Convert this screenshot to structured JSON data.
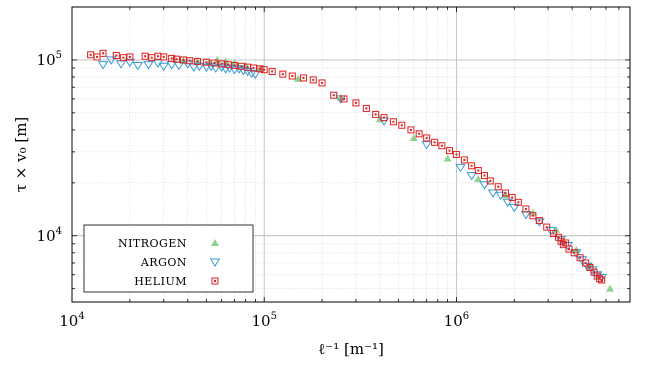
{
  "chart_data": {
    "type": "scatter",
    "xscale": "log",
    "yscale": "log",
    "xlim": [
      10000,
      8000000
    ],
    "ylim": [
      4200,
      200000
    ],
    "xlabel": "ℓ⁻¹ [m⁻¹]",
    "ylabel": "τ × v₀ [m]",
    "grid": true,
    "legend_position": "bottom-left",
    "x_ticks": [
      {
        "value": 10000,
        "base": "10",
        "exp": "4"
      },
      {
        "value": 100000,
        "base": "10",
        "exp": "5"
      },
      {
        "value": 1000000,
        "base": "10",
        "exp": "6"
      }
    ],
    "y_ticks": [
      {
        "value": 10000,
        "base": "10",
        "exp": "4"
      },
      {
        "value": 100000,
        "base": "10",
        "exp": "5"
      }
    ],
    "series": [
      {
        "name": "NITROGEN",
        "color": "#8fd18f",
        "marker": "triangle-up",
        "points": [
          [
            38000,
            99000
          ],
          [
            45000,
            98000
          ],
          [
            52000,
            97000
          ],
          [
            57000,
            100000
          ],
          [
            63000,
            98000
          ],
          [
            70000,
            96000
          ],
          [
            80000,
            93000
          ],
          [
            95000,
            89000
          ],
          [
            150000,
            78000
          ],
          [
            250000,
            61000
          ],
          [
            400000,
            46000
          ],
          [
            600000,
            36000
          ],
          [
            900000,
            27500
          ],
          [
            1300000,
            21000
          ],
          [
            1800000,
            17000
          ],
          [
            2500000,
            13500
          ],
          [
            3300000,
            10800
          ],
          [
            4200000,
            8300
          ],
          [
            5000000,
            6800
          ],
          [
            6300000,
            5000
          ]
        ]
      },
      {
        "name": "ARGON",
        "color": "#3a9bd5",
        "marker": "triangle-down",
        "points": [
          [
            14500,
            94000
          ],
          [
            16000,
            100000
          ],
          [
            18000,
            95000
          ],
          [
            20000,
            97000
          ],
          [
            22000,
            93000
          ],
          [
            25000,
            94000
          ],
          [
            28000,
            96000
          ],
          [
            30000,
            92000
          ],
          [
            33000,
            94000
          ],
          [
            36000,
            93000
          ],
          [
            40000,
            95000
          ],
          [
            43000,
            91000
          ],
          [
            46000,
            92000
          ],
          [
            50000,
            91000
          ],
          [
            53000,
            92000
          ],
          [
            56000,
            90000
          ],
          [
            60000,
            91000
          ],
          [
            63000,
            89000
          ],
          [
            66000,
            90000
          ],
          [
            70000,
            88000
          ],
          [
            74000,
            89000
          ],
          [
            78000,
            87000
          ],
          [
            82000,
            86000
          ],
          [
            86000,
            84000
          ],
          [
            90000,
            83000
          ],
          [
            250000,
            60000
          ],
          [
            420000,
            45000
          ],
          [
            700000,
            33000
          ],
          [
            1050000,
            24500
          ],
          [
            1200000,
            22000
          ],
          [
            1400000,
            19500
          ],
          [
            1550000,
            17500
          ],
          [
            1700000,
            17000
          ],
          [
            1850000,
            15500
          ],
          [
            2000000,
            14500
          ],
          [
            2300000,
            13200
          ],
          [
            2700000,
            12000
          ],
          [
            3100000,
            10700
          ],
          [
            3500000,
            9500
          ],
          [
            3800000,
            8800
          ],
          [
            4200000,
            8000
          ],
          [
            4500000,
            7300
          ],
          [
            4800000,
            6700
          ],
          [
            5100000,
            6400
          ],
          [
            5400000,
            6000
          ],
          [
            5700000,
            5800
          ]
        ]
      },
      {
        "name": "HELIUM",
        "color": "#e02020",
        "marker": "square",
        "points": [
          [
            12500,
            107000
          ],
          [
            13500,
            104000
          ],
          [
            14500,
            109000
          ],
          [
            17000,
            106000
          ],
          [
            18500,
            103000
          ],
          [
            20000,
            104000
          ],
          [
            24000,
            105000
          ],
          [
            26000,
            103000
          ],
          [
            28000,
            105000
          ],
          [
            30000,
            104000
          ],
          [
            33000,
            102000
          ],
          [
            35000,
            101000
          ],
          [
            38000,
            100000
          ],
          [
            41000,
            99000
          ],
          [
            45000,
            98000
          ],
          [
            50000,
            97000
          ],
          [
            55000,
            96000
          ],
          [
            60000,
            95000
          ],
          [
            65000,
            94000
          ],
          [
            70000,
            93000
          ],
          [
            76000,
            92000
          ],
          [
            82000,
            91000
          ],
          [
            88000,
            90000
          ],
          [
            95000,
            89000
          ],
          [
            100000,
            88000
          ],
          [
            110000,
            86000
          ],
          [
            125000,
            83000
          ],
          [
            140000,
            81000
          ],
          [
            160000,
            79000
          ],
          [
            180000,
            77000
          ],
          [
            200000,
            74000
          ],
          [
            230000,
            63000
          ],
          [
            260000,
            60000
          ],
          [
            300000,
            57000
          ],
          [
            340000,
            53000
          ],
          [
            380000,
            49000
          ],
          [
            420000,
            47000
          ],
          [
            470000,
            44500
          ],
          [
            520000,
            42500
          ],
          [
            580000,
            40000
          ],
          [
            640000,
            38000
          ],
          [
            700000,
            36000
          ],
          [
            770000,
            34000
          ],
          [
            840000,
            32500
          ],
          [
            920000,
            30500
          ],
          [
            1000000,
            29000
          ],
          [
            1100000,
            27000
          ],
          [
            1200000,
            25000
          ],
          [
            1300000,
            23500
          ],
          [
            1400000,
            22000
          ],
          [
            1500000,
            20500
          ],
          [
            1650000,
            19000
          ],
          [
            1800000,
            17500
          ],
          [
            1950000,
            16500
          ],
          [
            2100000,
            15500
          ],
          [
            2300000,
            14200
          ],
          [
            2500000,
            13000
          ],
          [
            2700000,
            12200
          ],
          [
            2950000,
            11200
          ],
          [
            3200000,
            10300
          ],
          [
            3400000,
            9800
          ],
          [
            3500000,
            9300
          ],
          [
            3600000,
            8900
          ],
          [
            3700000,
            9100
          ],
          [
            3850000,
            8400
          ],
          [
            4100000,
            8000
          ],
          [
            4400000,
            7500
          ],
          [
            4700000,
            7000
          ],
          [
            4950000,
            6600
          ],
          [
            5200000,
            6200
          ],
          [
            5400000,
            5900
          ],
          [
            5550000,
            5700
          ],
          [
            5700000,
            5600
          ]
        ]
      }
    ]
  }
}
